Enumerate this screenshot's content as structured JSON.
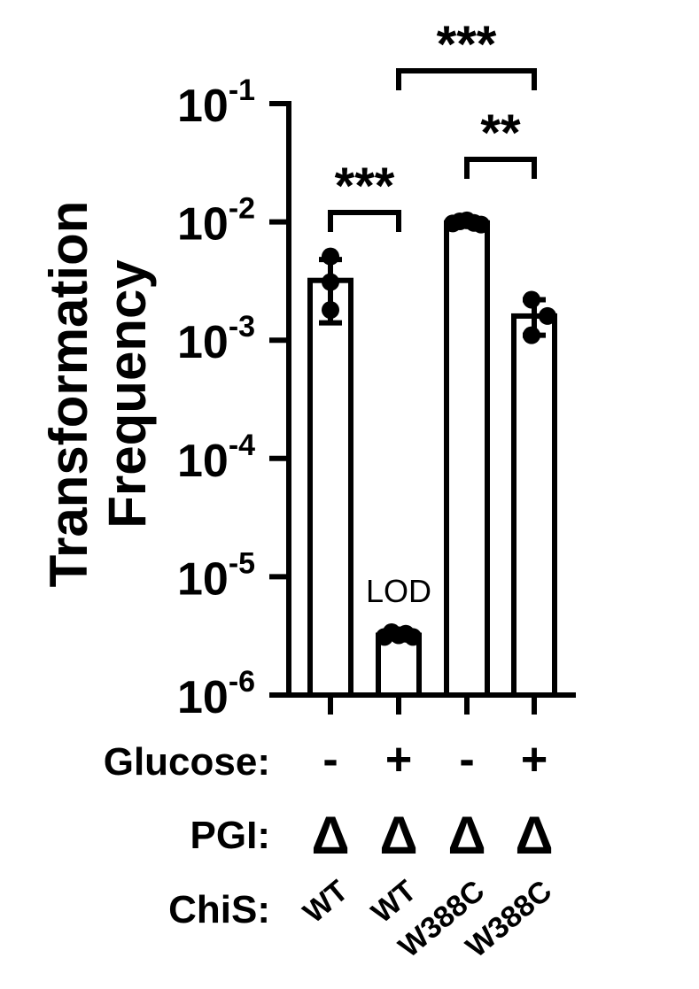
{
  "chart_data": {
    "type": "bar",
    "yscale": "log",
    "ylim": [
      1e-06,
      0.1
    ],
    "ylabel": [
      "Transformation",
      "Frequency"
    ],
    "ytick_labels": [
      {
        "base": "10",
        "exp": "-1",
        "value": 0.1
      },
      {
        "base": "10",
        "exp": "-2",
        "value": 0.01
      },
      {
        "base": "10",
        "exp": "-3",
        "value": 0.001
      },
      {
        "base": "10",
        "exp": "-4",
        "value": 0.0001
      },
      {
        "base": "10",
        "exp": "-5",
        "value": 1e-05
      },
      {
        "base": "10",
        "exp": "-6",
        "value": 1e-06
      }
    ],
    "categories": [
      {
        "glucose": "-",
        "pgi": "Δ",
        "chis": "WT"
      },
      {
        "glucose": "+",
        "pgi": "Δ",
        "chis": "WT"
      },
      {
        "glucose": "-",
        "pgi": "Δ",
        "chis": "W388C"
      },
      {
        "glucose": "+",
        "pgi": "Δ",
        "chis": "W388C"
      }
    ],
    "bars": [
      {
        "mean": 0.0032,
        "err_low": 0.0014,
        "err_high": 0.0048,
        "points": [
          0.0051,
          0.0031,
          0.0018
        ]
      },
      {
        "mean": 3.2e-06,
        "err_low": 3.2e-06,
        "err_high": 3.2e-06,
        "points": [
          3.1e-06,
          3.4e-06,
          3.2e-06,
          3.3e-06,
          3.1e-06
        ]
      },
      {
        "mean": 0.0098,
        "err_low": 0.0096,
        "err_high": 0.0102,
        "points": [
          0.0097,
          0.0101,
          0.0103,
          0.0098,
          0.0095
        ]
      },
      {
        "mean": 0.0016,
        "err_low": 0.0011,
        "err_high": 0.0022,
        "points": [
          0.0022,
          0.0016,
          0.0011
        ]
      }
    ],
    "row_labels": {
      "glucose": "Glucose:",
      "pgi": "PGI:",
      "chis": "ChiS:"
    },
    "lod_label": "LOD",
    "significance": [
      {
        "from": 0,
        "to": 1,
        "label": "***"
      },
      {
        "from": 2,
        "to": 3,
        "label": "**"
      },
      {
        "from": 1,
        "to": 3,
        "label": "***"
      }
    ]
  }
}
